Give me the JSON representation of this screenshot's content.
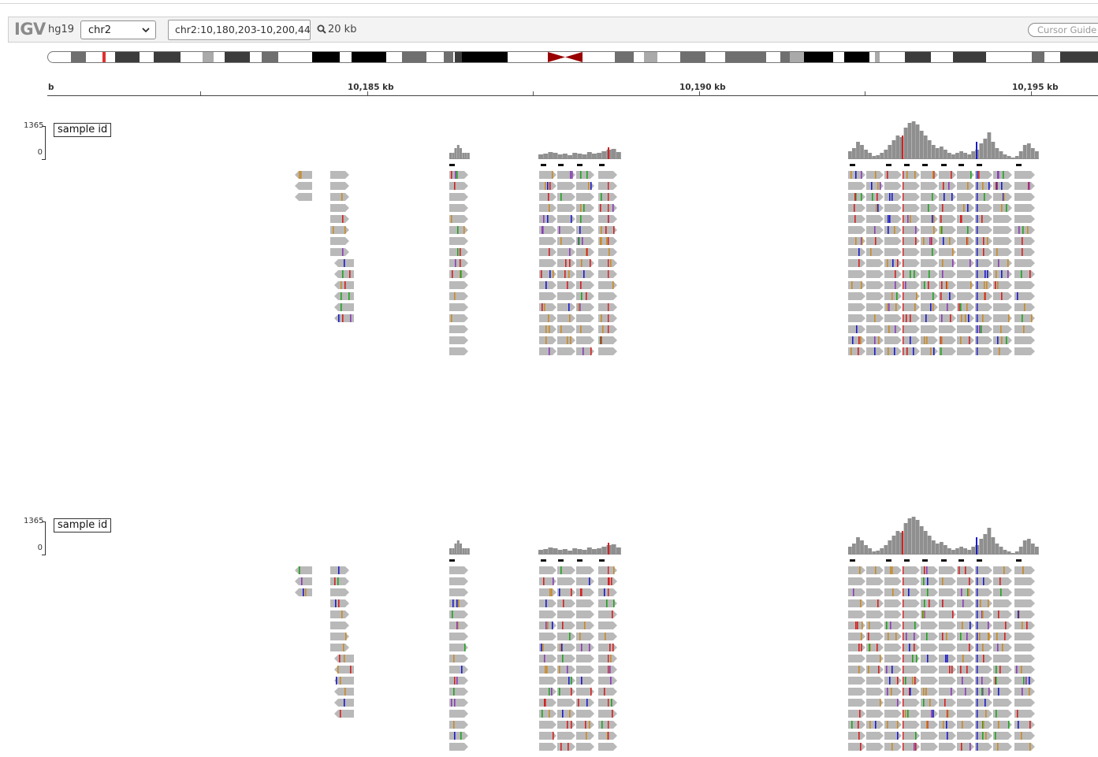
{
  "navbar": {
    "logo": "IGV",
    "genome": "hg19",
    "chromosome": "chr2",
    "locus": "chr2:10,180,203-10,200,44",
    "window_size": "20 kb",
    "cursor_guide_label": "Cursor Guide"
  },
  "ruler": {
    "left_label": "b",
    "labels": [
      "10,185 kb",
      "10,190 kb",
      "10,195 kb"
    ]
  },
  "tracks": [
    {
      "sample_label": "sample id",
      "scale_max": "1365",
      "scale_min": "0"
    },
    {
      "sample_label": "sample id",
      "scale_max": "1365",
      "scale_min": "0"
    }
  ],
  "colors": {
    "read": "#b9b9b9",
    "coverage": "#8f8f8f",
    "mismatch_A": "#1fa31f",
    "mismatch_C": "#1a1acc",
    "mismatch_G": "#c98a28",
    "mismatch_T": "#d42020",
    "insertion": "#8a3db8",
    "centromere": "#990000"
  },
  "icons": {
    "chromosome_dropdown": "chevron-down-icon",
    "zoom": "search-icon"
  }
}
